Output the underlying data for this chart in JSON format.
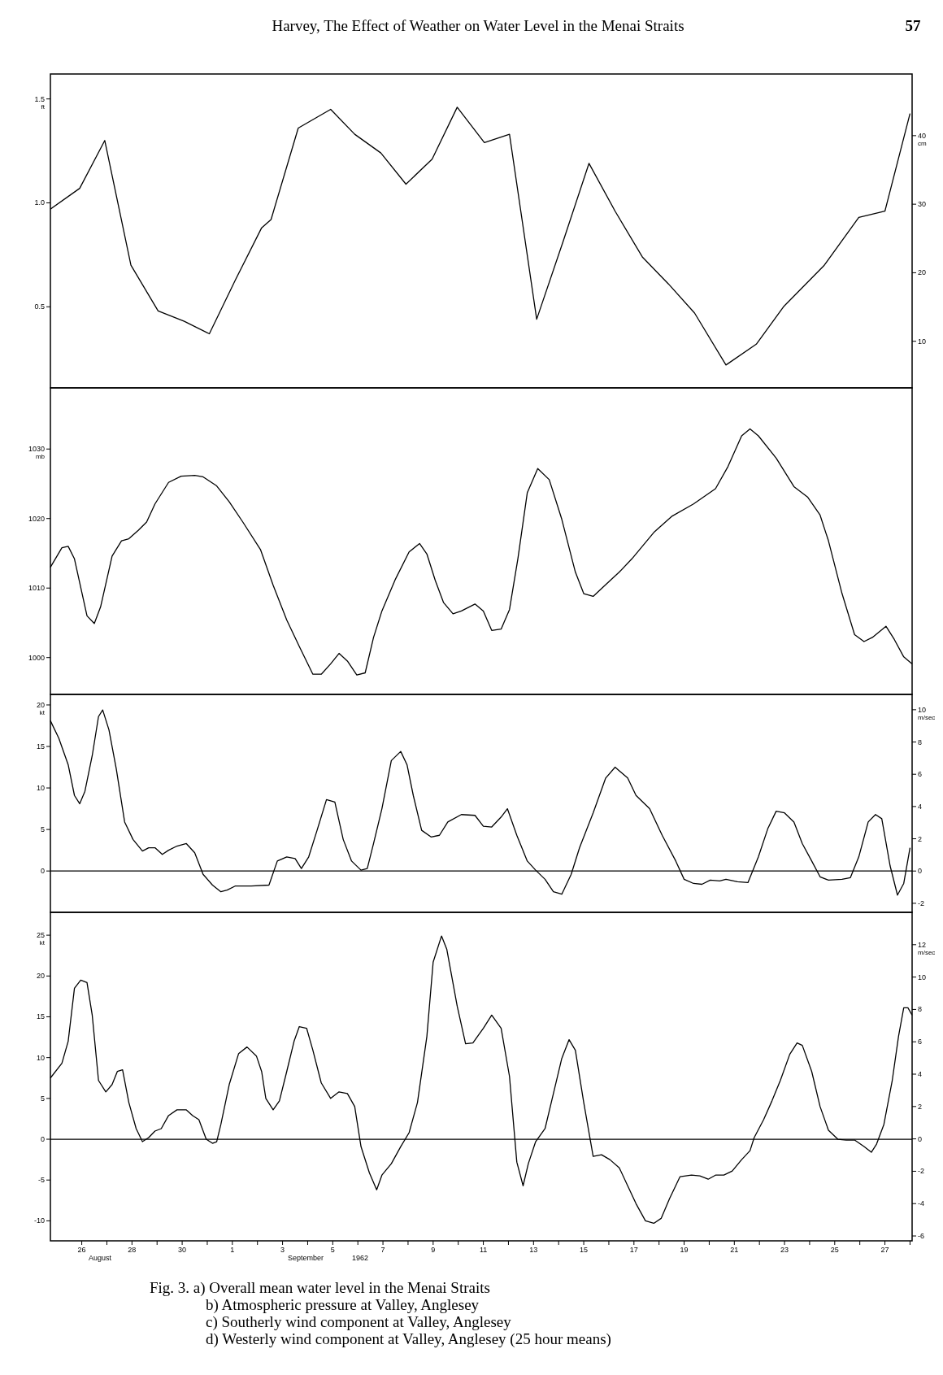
{
  "chart_data": [
    {
      "type": "line",
      "title": "Harvey, The Effect of Weather on Water Level in the Menai Straits",
      "annotations": [
        "57"
      ],
      "ylabel": "ft",
      "y2label": "cm",
      "tick_labels": "y",
      "xlim": [
        "1962-08-24T18:00",
        "1962-09-28T02:00"
      ],
      "ylim": [
        0.11,
        1.62
      ],
      "yticks": [
        {
          "value": 1.5,
          "label": "1.5"
        },
        {
          "value": 1,
          "label": "1.0"
        },
        {
          "value": 0.5,
          "label": "0.5"
        }
      ],
      "y2lim": [
        3.2,
        49.0
      ],
      "y2ticks": [
        10,
        20,
        30,
        40
      ],
      "series": [
        {
          "color": "#000000",
          "x": [
            "1962-08-24T18:00",
            "1962-08-25T22:00",
            "1962-08-26T22:00",
            "1962-08-27T23:00",
            "1962-08-29T01:00",
            "1962-08-30T02:00",
            "1962-08-31T02:00",
            "1962-09-01T03:00",
            "1962-09-02T04:00",
            "1962-09-02T13:00",
            "1962-09-03T15:00",
            "1962-09-04T22:00",
            "1962-09-05T21:00",
            "1962-09-06T22:00",
            "1962-09-07T22:00",
            "1962-09-08T23:00",
            "1962-09-09T23:00",
            "1962-09-11T01:00",
            "1962-09-12T01:00",
            "1962-09-13T03:00",
            "1962-09-14T04:00",
            "1962-09-15T05:00",
            "1962-09-16T06:00",
            "1962-09-17T08:00",
            "1962-09-18T09:00",
            "1962-09-19T10:00",
            "1962-09-20T16:00",
            "1962-09-21T21:00",
            "1962-09-22T23:00",
            "1962-09-24T14:00",
            "1962-09-25T23:00",
            "1962-09-27T00:00",
            "1962-09-28T00:00"
          ],
          "values": [
            0.97,
            1.07,
            1.3,
            0.7,
            0.48,
            0.43,
            0.37,
            0.63,
            0.88,
            0.92,
            1.36,
            1.45,
            1.33,
            1.24,
            1.09,
            1.21,
            1.46,
            1.29,
            1.33,
            0.44,
            0.81,
            1.19,
            0.96,
            0.74,
            0.61,
            0.47,
            0.22,
            0.32,
            0.5,
            0.7,
            0.93,
            0.96,
            1.43
          ]
        }
      ]
    },
    {
      "type": "line",
      "ylabel": "mb",
      "tick_labels": "y",
      "xlim": [
        "1962-08-24T18:00",
        "1962-09-28T02:00"
      ],
      "ylim": [
        994.7,
        1038.8
      ],
      "yticks": [
        1000,
        1010,
        1020,
        1030
      ],
      "series": [
        {
          "color": "#000000",
          "x": [
            "1962-08-24T18:00",
            "1962-08-25T05:00",
            "1962-08-25T11:00",
            "1962-08-25T17:00",
            "1962-08-26T05:00",
            "1962-08-26T12:00",
            "1962-08-26T18:00",
            "1962-08-27T05:00",
            "1962-08-27T14:00",
            "1962-08-27T21:00",
            "1962-08-28T06:00",
            "1962-08-28T14:00",
            "1962-08-28T22:00",
            "1962-08-29T11:00",
            "1962-08-29T23:00",
            "1962-08-30T12:00",
            "1962-08-30T20:00",
            "1962-08-31T09:00",
            "1962-08-31T21:00",
            "1962-09-01T10:00",
            "1962-09-02T03:00",
            "1962-09-02T15:00",
            "1962-09-03T04:00",
            "1962-09-03T16:00",
            "1962-09-04T05:00",
            "1962-09-04T13:00",
            "1962-09-04T22:00",
            "1962-09-05T06:00",
            "1962-09-05T14:00",
            "1962-09-05T23:00",
            "1962-09-06T07:00",
            "1962-09-06T15:00",
            "1962-09-06T23:00",
            "1962-09-07T12:00",
            "1962-09-08T01:00",
            "1962-09-08T11:00",
            "1962-09-08T18:00",
            "1962-09-09T02:00",
            "1962-09-09T10:00",
            "1962-09-09T19:00",
            "1962-09-10T03:00",
            "1962-09-10T16:00",
            "1962-09-11T00:00",
            "1962-09-11T08:00",
            "1962-09-11T17:00",
            "1962-09-12T01:00",
            "1962-09-12T09:00",
            "1962-09-12T18:00",
            "1962-09-13T04:00",
            "1962-09-13T15:00",
            "1962-09-14T03:00",
            "1962-09-14T16:00",
            "1962-09-15T00:00",
            "1962-09-15T09:00",
            "1962-09-15T21:00",
            "1962-09-16T10:00",
            "1962-09-16T22:00",
            "1962-09-17T19:00",
            "1962-09-18T12:00",
            "1962-09-19T09:00",
            "1962-09-20T06:00",
            "1962-09-20T18:00",
            "1962-09-21T07:00",
            "1962-09-21T15:00",
            "1962-09-21T23:00",
            "1962-09-22T16:00",
            "1962-09-23T09:00",
            "1962-09-23T22:00",
            "1962-09-24T10:00",
            "1962-09-24T18:00",
            "1962-09-25T07:00",
            "1962-09-25T19:00",
            "1962-09-26T04:00",
            "1962-09-26T12:00",
            "1962-09-27T01:00",
            "1962-09-27T09:00",
            "1962-09-27T18:00",
            "1962-09-28T02:00"
          ],
          "values": [
            1013.0,
            1015.8,
            1016.0,
            1014.2,
            1006.0,
            1004.9,
            1007.3,
            1014.6,
            1016.8,
            1017.1,
            1018.3,
            1019.5,
            1022.1,
            1025.2,
            1026.1,
            1026.2,
            1026.0,
            1024.7,
            1022.4,
            1019.5,
            1015.5,
            1010.4,
            1005.4,
            1001.6,
            997.6,
            997.6,
            999.1,
            1000.6,
            999.5,
            997.5,
            997.8,
            1002.9,
            1006.7,
            1011.3,
            1015.2,
            1016.4,
            1014.9,
            1011.1,
            1007.9,
            1006.3,
            1006.7,
            1007.7,
            1006.7,
            1003.9,
            1004.1,
            1006.9,
            1014.2,
            1023.7,
            1027.2,
            1025.6,
            1019.9,
            1012.3,
            1009.2,
            1008.8,
            1010.5,
            1012.3,
            1014.2,
            1018.0,
            1020.3,
            1022.1,
            1024.3,
            1027.5,
            1031.9,
            1032.9,
            1031.9,
            1028.7,
            1024.6,
            1023.1,
            1020.5,
            1016.8,
            1009.2,
            1003.3,
            1002.3,
            1002.9,
            1004.5,
            1002.6,
            1000.1,
            999.1
          ]
        }
      ]
    },
    {
      "type": "line",
      "ylabel": "kt",
      "y2label": "m/sec",
      "tick_labels": "y",
      "xlim": [
        "1962-08-24T18:00",
        "1962-09-28T02:00"
      ],
      "ylim": [
        -4.98,
        21.27
      ],
      "yticks": [
        0,
        5,
        10,
        15,
        20
      ],
      "y2lim": [
        -2.56,
        10.95
      ],
      "y2ticks": [
        -2,
        0,
        2,
        4,
        6,
        8,
        10
      ],
      "ref_lines": [
        {
          "axis": "y",
          "value": 0
        }
      ],
      "series": [
        {
          "color": "#000000",
          "x": [
            "1962-08-24T18:00",
            "1962-08-25T02:00",
            "1962-08-25T11:00",
            "1962-08-25T17:00",
            "1962-08-25T22:00",
            "1962-08-26T03:00",
            "1962-08-26T10:00",
            "1962-08-26T16:00",
            "1962-08-26T20:00",
            "1962-08-27T02:00",
            "1962-08-27T09:00",
            "1962-08-27T17:00",
            "1962-08-28T01:00",
            "1962-08-28T10:00",
            "1962-08-28T16:00",
            "1962-08-28T22:00",
            "1962-08-29T05:00",
            "1962-08-29T11:00",
            "1962-08-29T19:00",
            "1962-08-30T04:00",
            "1962-08-30T12:00",
            "1962-08-30T20:00",
            "1962-08-31T05:00",
            "1962-08-31T13:00",
            "1962-08-31T19:00",
            "1962-09-01T03:00",
            "1962-09-01T18:00",
            "1962-09-02T11:00",
            "1962-09-02T19:00",
            "1962-09-03T04:00",
            "1962-09-03T12:00",
            "1962-09-03T18:00",
            "1962-09-04T01:00",
            "1962-09-04T09:00",
            "1962-09-04T18:00",
            "1962-09-05T02:00",
            "1962-09-05T10:00",
            "1962-09-05T18:00",
            "1962-09-06T03:00",
            "1962-09-06T09:00",
            "1962-09-06T15:00",
            "1962-09-06T23:00",
            "1962-09-07T08:00",
            "1962-09-07T17:00",
            "1962-09-07T23:00",
            "1962-09-08T05:00",
            "1962-09-08T13:00",
            "1962-09-08T22:00",
            "1962-09-09T06:00",
            "1962-09-09T14:00",
            "1962-09-10T03:00",
            "1962-09-10T16:00",
            "1962-09-11T00:00",
            "1962-09-11T08:00",
            "1962-09-11T17:00",
            "1962-09-11T23:00",
            "1962-09-12T08:00",
            "1962-09-12T18:00",
            "1962-09-13T02:00",
            "1962-09-13T11:00",
            "1962-09-13T19:00",
            "1962-09-14T03:00",
            "1962-09-14T12:00",
            "1962-09-14T20:00",
            "1962-09-15T09:00",
            "1962-09-15T21:00",
            "1962-09-16T06:00",
            "1962-09-16T18:00",
            "1962-09-17T02:00",
            "1962-09-17T15:00",
            "1962-09-18T03:00",
            "1962-09-18T16:00",
            "1962-09-19T00:00",
            "1962-09-19T09:00",
            "1962-09-19T17:00",
            "1962-09-20T01:00",
            "1962-09-20T10:00",
            "1962-09-20T16:00",
            "1962-09-21T03:00",
            "1962-09-21T13:00",
            "1962-09-21T23:00",
            "1962-09-22T08:00",
            "1962-09-22T16:00",
            "1962-09-23T00:00",
            "1962-09-23T09:00",
            "1962-09-23T17:00",
            "1962-09-24T02:00",
            "1962-09-24T10:00",
            "1962-09-24T18:00",
            "1962-09-25T07:00",
            "1962-09-25T15:00",
            "1962-09-25T23:00",
            "1962-09-26T08:00",
            "1962-09-26T15:00",
            "1962-09-26T21:00",
            "1962-09-27T05:00",
            "1962-09-27T12:00",
            "1962-09-27T18:00",
            "1962-09-28T00:00"
          ],
          "values": [
            18.1,
            16.0,
            12.8,
            9.1,
            8.1,
            9.6,
            13.9,
            18.6,
            19.4,
            17.0,
            12.3,
            5.9,
            3.8,
            2.4,
            2.8,
            2.8,
            2.0,
            2.5,
            3.0,
            3.3,
            2.2,
            -0.4,
            -1.7,
            -2.5,
            -2.3,
            -1.8,
            -1.8,
            -1.7,
            1.2,
            1.7,
            1.5,
            0.3,
            1.7,
            4.9,
            8.6,
            8.3,
            3.8,
            1.2,
            0.1,
            0.3,
            3.3,
            7.5,
            13.3,
            14.4,
            12.8,
            9.1,
            4.9,
            4.1,
            4.3,
            5.9,
            6.8,
            6.7,
            5.4,
            5.3,
            6.5,
            7.5,
            4.3,
            1.2,
            0.1,
            -1.0,
            -2.5,
            -2.8,
            -0.4,
            2.8,
            7.0,
            11.2,
            12.5,
            11.2,
            9.1,
            7.5,
            4.3,
            1.2,
            -1.0,
            -1.5,
            -1.6,
            -1.1,
            -1.2,
            -1.0,
            -1.3,
            -1.4,
            1.7,
            5.1,
            7.2,
            7.0,
            5.9,
            3.3,
            1.2,
            -0.7,
            -1.1,
            -1.0,
            -0.8,
            1.7,
            5.9,
            6.8,
            6.3,
            0.6,
            -2.9,
            -1.5,
            2.8
          ]
        }
      ]
    },
    {
      "type": "line",
      "ylabel": "kt",
      "y2label": "m/sec",
      "annotations": [
        "August",
        "September",
        "1962",
        "Fig. 3. a) Overall mean water level in the Menai Straits",
        "b) Atmospheric pressure at Valley, Anglesey",
        "c) Southerly wind component at Valley, Anglesey",
        "d) Westerly wind component at Valley, Anglesey (25 hour means)"
      ],
      "xlim": [
        "1962-08-24T18:00",
        "1962-09-28T02:00"
      ],
      "xticks": [
        {
          "value": "1962-08-26",
          "label": "26"
        },
        {
          "value": "1962-08-27",
          "label": null
        },
        {
          "value": "1962-08-28",
          "label": "28"
        },
        {
          "value": "1962-08-29",
          "label": null
        },
        {
          "value": "1962-08-30",
          "label": "30"
        },
        {
          "value": "1962-08-31",
          "label": null
        },
        {
          "value": "1962-09-01",
          "label": "1"
        },
        {
          "value": "1962-09-02",
          "label": null
        },
        {
          "value": "1962-09-03",
          "label": "3"
        },
        {
          "value": "1962-09-04",
          "label": null
        },
        {
          "value": "1962-09-05",
          "label": "5"
        },
        {
          "value": "1962-09-06",
          "label": null
        },
        {
          "value": "1962-09-07",
          "label": "7"
        },
        {
          "value": "1962-09-08",
          "label": null
        },
        {
          "value": "1962-09-09",
          "label": "9"
        },
        {
          "value": "1962-09-10",
          "label": null
        },
        {
          "value": "1962-09-11",
          "label": "11"
        },
        {
          "value": "1962-09-12",
          "label": null
        },
        {
          "value": "1962-09-13",
          "label": "13"
        },
        {
          "value": "1962-09-14",
          "label": null
        },
        {
          "value": "1962-09-15",
          "label": "15"
        },
        {
          "value": "1962-09-16",
          "label": null
        },
        {
          "value": "1962-09-17",
          "label": "17"
        },
        {
          "value": "1962-09-18",
          "label": null
        },
        {
          "value": "1962-09-19",
          "label": "19"
        },
        {
          "value": "1962-09-20",
          "label": null
        },
        {
          "value": "1962-09-21",
          "label": "21"
        },
        {
          "value": "1962-09-22",
          "label": null
        },
        {
          "value": "1962-09-23",
          "label": "23"
        },
        {
          "value": "1962-09-24",
          "label": null
        },
        {
          "value": "1962-09-25",
          "label": "25"
        },
        {
          "value": "1962-09-26",
          "label": null
        },
        {
          "value": "1962-09-27",
          "label": "27"
        },
        {
          "value": "1962-09-28",
          "label": null
        }
      ],
      "ylim": [
        -12.45,
        27.8
      ],
      "yticks": [
        -10,
        -5,
        0,
        5,
        10,
        15,
        20,
        25
      ],
      "y2lim": [
        -6.3,
        14.0
      ],
      "y2ticks": [
        -6,
        -4,
        -2,
        0,
        2,
        4,
        6,
        8,
        10,
        12
      ],
      "ref_lines": [
        {
          "axis": "y",
          "value": 0
        }
      ],
      "series": [
        {
          "color": "#000000",
          "x": [
            "1962-08-24T18:00",
            "1962-08-25T05:00",
            "1962-08-25T11:00",
            "1962-08-25T17:00",
            "1962-08-25T23:00",
            "1962-08-26T05:00",
            "1962-08-26T10:00",
            "1962-08-26T16:00",
            "1962-08-26T23:00",
            "1962-08-27T05:00",
            "1962-08-27T10:00",
            "1962-08-27T15:00",
            "1962-08-27T21:00",
            "1962-08-28T04:00",
            "1962-08-28T10:00",
            "1962-08-28T16:00",
            "1962-08-28T22:00",
            "1962-08-29T04:00",
            "1962-08-29T11:00",
            "1962-08-29T19:00",
            "1962-08-30T04:00",
            "1962-08-30T10:00",
            "1962-08-30T16:00",
            "1962-08-30T23:00",
            "1962-08-31T05:00",
            "1962-08-31T09:00",
            "1962-08-31T13:00",
            "1962-08-31T21:00",
            "1962-09-01T06:00",
            "1962-09-01T14:00",
            "1962-09-01T23:00",
            "1962-09-02T04:00",
            "1962-09-02T08:00",
            "1962-09-02T15:00",
            "1962-09-02T21:00",
            "1962-09-03T04:00",
            "1962-09-03T11:00",
            "1962-09-03T16:00",
            "1962-09-03T23:00",
            "1962-09-04T05:00",
            "1962-09-04T13:00",
            "1962-09-04T22:00",
            "1962-09-05T06:00",
            "1962-09-05T14:00",
            "1962-09-05T21:00",
            "1962-09-06T03:00",
            "1962-09-06T11:00",
            "1962-09-06T18:00",
            "1962-09-06T23:00",
            "1962-09-07T08:00",
            "1962-09-07T17:00",
            "1962-09-08T01:00",
            "1962-09-08T09:00",
            "1962-09-08T18:00",
            "1962-09-09T00:00",
            "1962-09-09T08:00",
            "1962-09-09T13:00",
            "1962-09-09T23:00",
            "1962-09-10T07:00",
            "1962-09-10T14:00",
            "1962-09-11T00:00",
            "1962-09-11T08:00",
            "1962-09-11T17:00",
            "1962-09-12T01:00",
            "1962-09-12T08:00",
            "1962-09-12T14:00",
            "1962-09-12T19:00",
            "1962-09-13T02:00",
            "1962-09-13T11:00",
            "1962-09-13T19:00",
            "1962-09-14T03:00",
            "1962-09-14T10:00",
            "1962-09-14T16:00",
            "1962-09-15T00:00",
            "1962-09-15T09:00",
            "1962-09-15T17:00",
            "1962-09-16T01:00",
            "1962-09-16T10:00",
            "1962-09-16T18:00",
            "1962-09-17T02:00",
            "1962-09-17T11:00",
            "1962-09-17T19:00",
            "1962-09-18T02:00",
            "1962-09-18T10:00",
            "1962-09-18T20:00",
            "1962-09-19T07:00",
            "1962-09-19T15:00",
            "1962-09-19T23:00",
            "1962-09-20T06:00",
            "1962-09-20T14:00",
            "1962-09-20T22:00",
            "1962-09-21T07:00",
            "1962-09-21T15:00",
            "1962-09-21T19:00",
            "1962-09-22T04:00",
            "1962-09-22T12:00",
            "1962-09-22T20:00",
            "1962-09-23T05:00",
            "1962-09-23T12:00",
            "1962-09-23T17:00",
            "1962-09-24T02:00",
            "1962-09-24T10:00",
            "1962-09-24T18:00",
            "1962-09-25T03:00",
            "1962-09-25T11:00",
            "1962-09-25T19:00",
            "1962-09-26T04:00",
            "1962-09-26T11:00",
            "1962-09-26T16:00",
            "1962-09-26T23:00",
            "1962-09-27T07:00",
            "1962-09-27T13:00",
            "1962-09-27T18:00",
            "1962-09-27T22:00",
            "1962-09-28T02:00"
          ],
          "values": [
            7.5,
            9.3,
            12.0,
            18.5,
            19.5,
            19.2,
            15.2,
            7.2,
            5.8,
            6.7,
            8.3,
            8.5,
            4.5,
            1.3,
            -0.3,
            0.2,
            1.0,
            1.3,
            2.9,
            3.6,
            3.6,
            2.9,
            2.4,
            0,
            -0.5,
            -0.3,
            1.8,
            6.7,
            10.5,
            11.3,
            10.2,
            8.3,
            5.0,
            3.6,
            4.7,
            8.3,
            12.0,
            13.8,
            13.6,
            10.9,
            6.9,
            5.0,
            5.8,
            5.6,
            4.0,
            -0.9,
            -4.1,
            -6.2,
            -4.4,
            -3.0,
            -0.9,
            0.8,
            4.5,
            12.6,
            21.7,
            24.9,
            23.3,
            16.3,
            11.7,
            11.8,
            13.6,
            15.2,
            13.6,
            7.7,
            -2.8,
            -5.7,
            -3.0,
            -0.3,
            1.3,
            5.6,
            9.9,
            12.2,
            10.9,
            4.5,
            -2.1,
            -1.9,
            -2.5,
            -3.5,
            -5.7,
            -7.9,
            -10.0,
            -10.3,
            -9.7,
            -7.3,
            -4.6,
            -4.4,
            -4.5,
            -4.9,
            -4.4,
            -4.4,
            -3.9,
            -2.5,
            -1.4,
            0.2,
            2.4,
            4.7,
            7.2,
            10.4,
            11.8,
            11.5,
            8.3,
            4.0,
            1.1,
            0,
            -0.1,
            -0.1,
            -0.9,
            -1.6,
            -0.6,
            1.8,
            7.2,
            12.6,
            16.1,
            16.1,
            15.2
          ]
        }
      ]
    }
  ]
}
